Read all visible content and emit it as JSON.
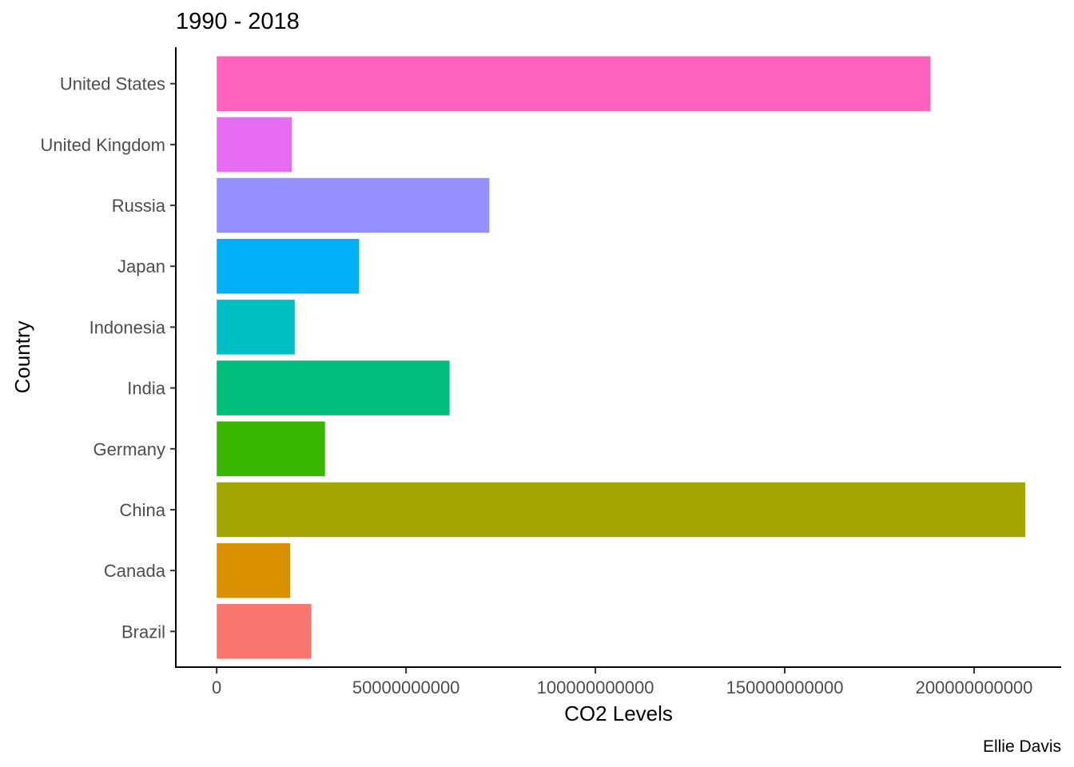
{
  "chart_data": {
    "type": "bar",
    "orientation": "horizontal",
    "title": "1990 - 2018",
    "xlabel": "CO2 Levels",
    "ylabel": "Country",
    "caption": "Ellie Davis",
    "xlim": [
      -10800000000,
      223000000000
    ],
    "xticks": [
      0,
      50000000000,
      100000000000,
      150000000000,
      200000000000
    ],
    "xtick_labels": [
      "0",
      "50000000000",
      "100000000000",
      "150000000000",
      "200000000000"
    ],
    "grid": false,
    "legend": "none",
    "categories": [
      "Brazil",
      "Canada",
      "China",
      "Germany",
      "India",
      "Indonesia",
      "Japan",
      "Russia",
      "United Kingdom",
      "United States"
    ],
    "values": [
      25000000000,
      19400000000,
      213500000000,
      28600000000,
      61500000000,
      20600000000,
      37600000000,
      72000000000,
      19800000000,
      188500000000
    ],
    "colors": [
      "#F8766D",
      "#D89000",
      "#A3A500",
      "#39B600",
      "#00BF7D",
      "#00BFC4",
      "#00B0F6",
      "#9590FF",
      "#E76BF3",
      "#FF62BC"
    ]
  }
}
